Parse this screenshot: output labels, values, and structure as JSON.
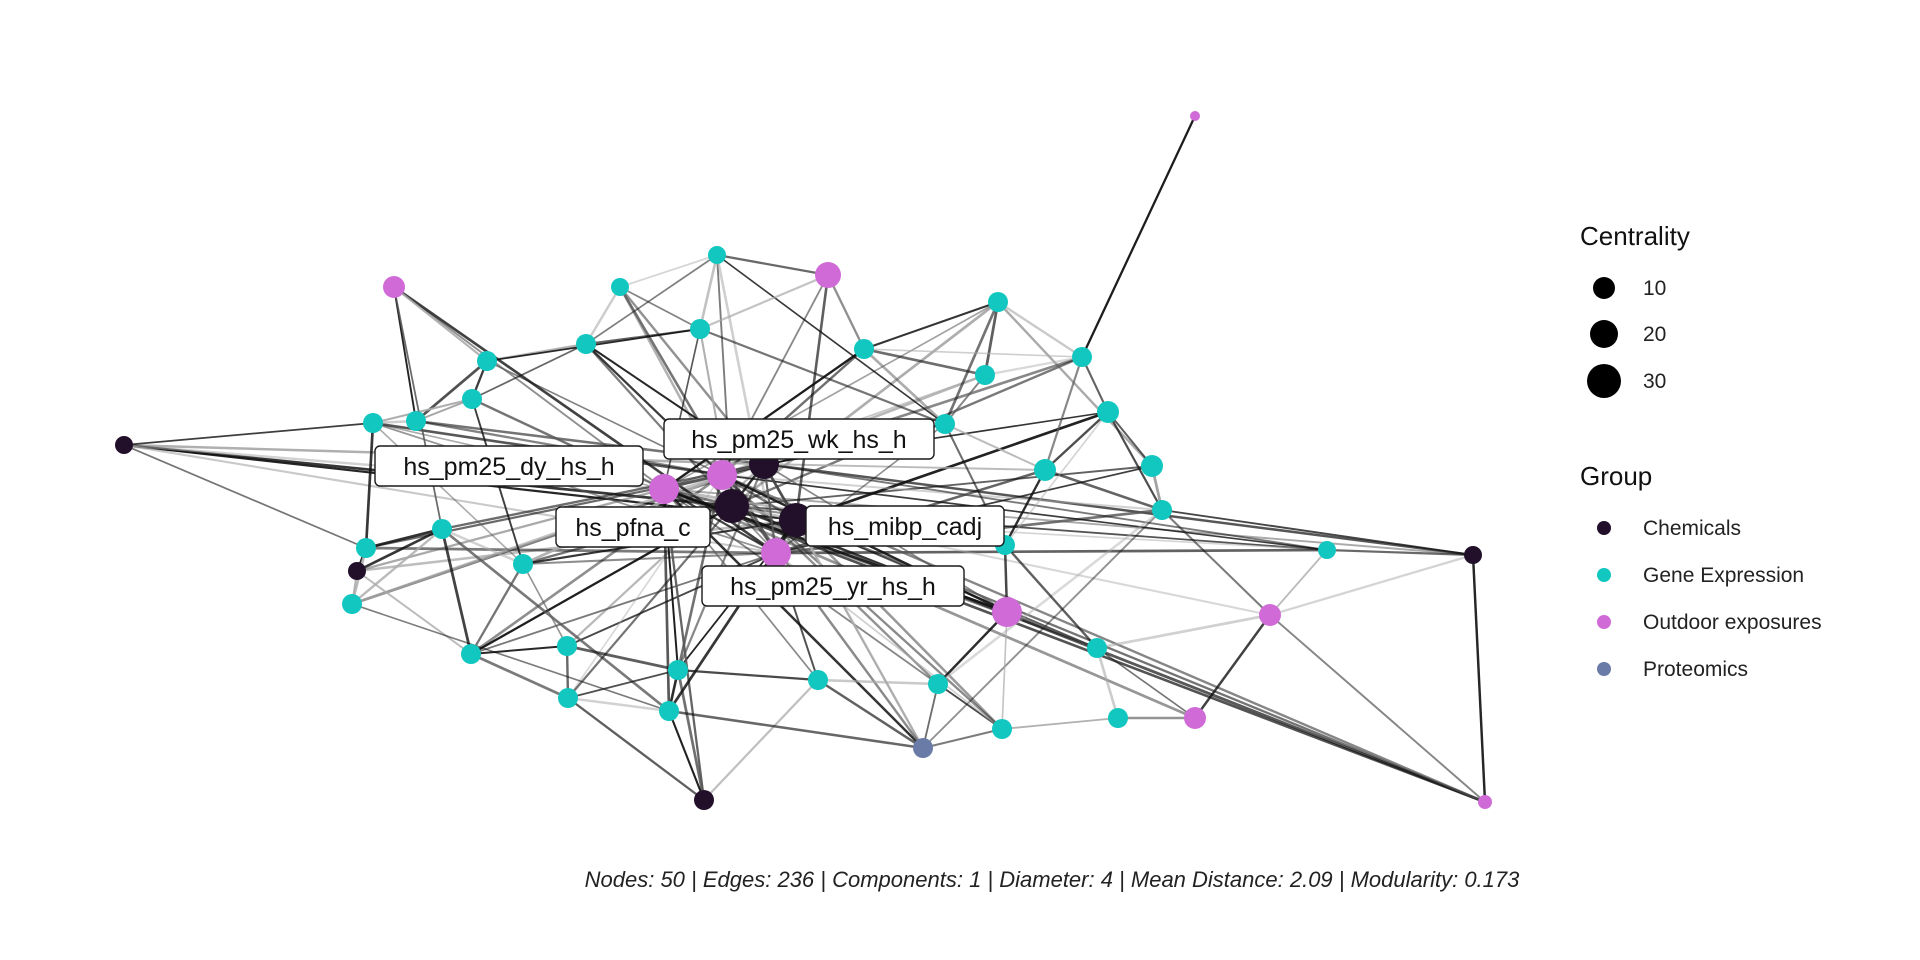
{
  "legend": {
    "centrality_title": "Centrality",
    "centrality_items": [
      {
        "label": "10",
        "value": 10
      },
      {
        "label": "20",
        "value": 20
      },
      {
        "label": "30",
        "value": 30
      }
    ],
    "group_title": "Group",
    "group_items": [
      {
        "label": "Chemicals",
        "color": "#22102a"
      },
      {
        "label": "Gene Expression",
        "color": "#12c7c0"
      },
      {
        "label": "Outdoor exposures",
        "color": "#cf6ad7"
      },
      {
        "label": "Proteomics",
        "color": "#6a7ba8"
      }
    ]
  },
  "labels": {
    "pm25_wk": "hs_pm25_wk_hs_h",
    "pm25_dy": "hs_pm25_dy_hs_h",
    "pfna": "hs_pfna_c",
    "mibp": "hs_mibp_cadj",
    "pm25_yr": "hs_pm25_yr_hs_h"
  },
  "caption": "Nodes: 50 | Edges: 236 | Components: 1 | Diameter: 4 | Mean Distance: 2.09 | Modularity: 0.173"
}
